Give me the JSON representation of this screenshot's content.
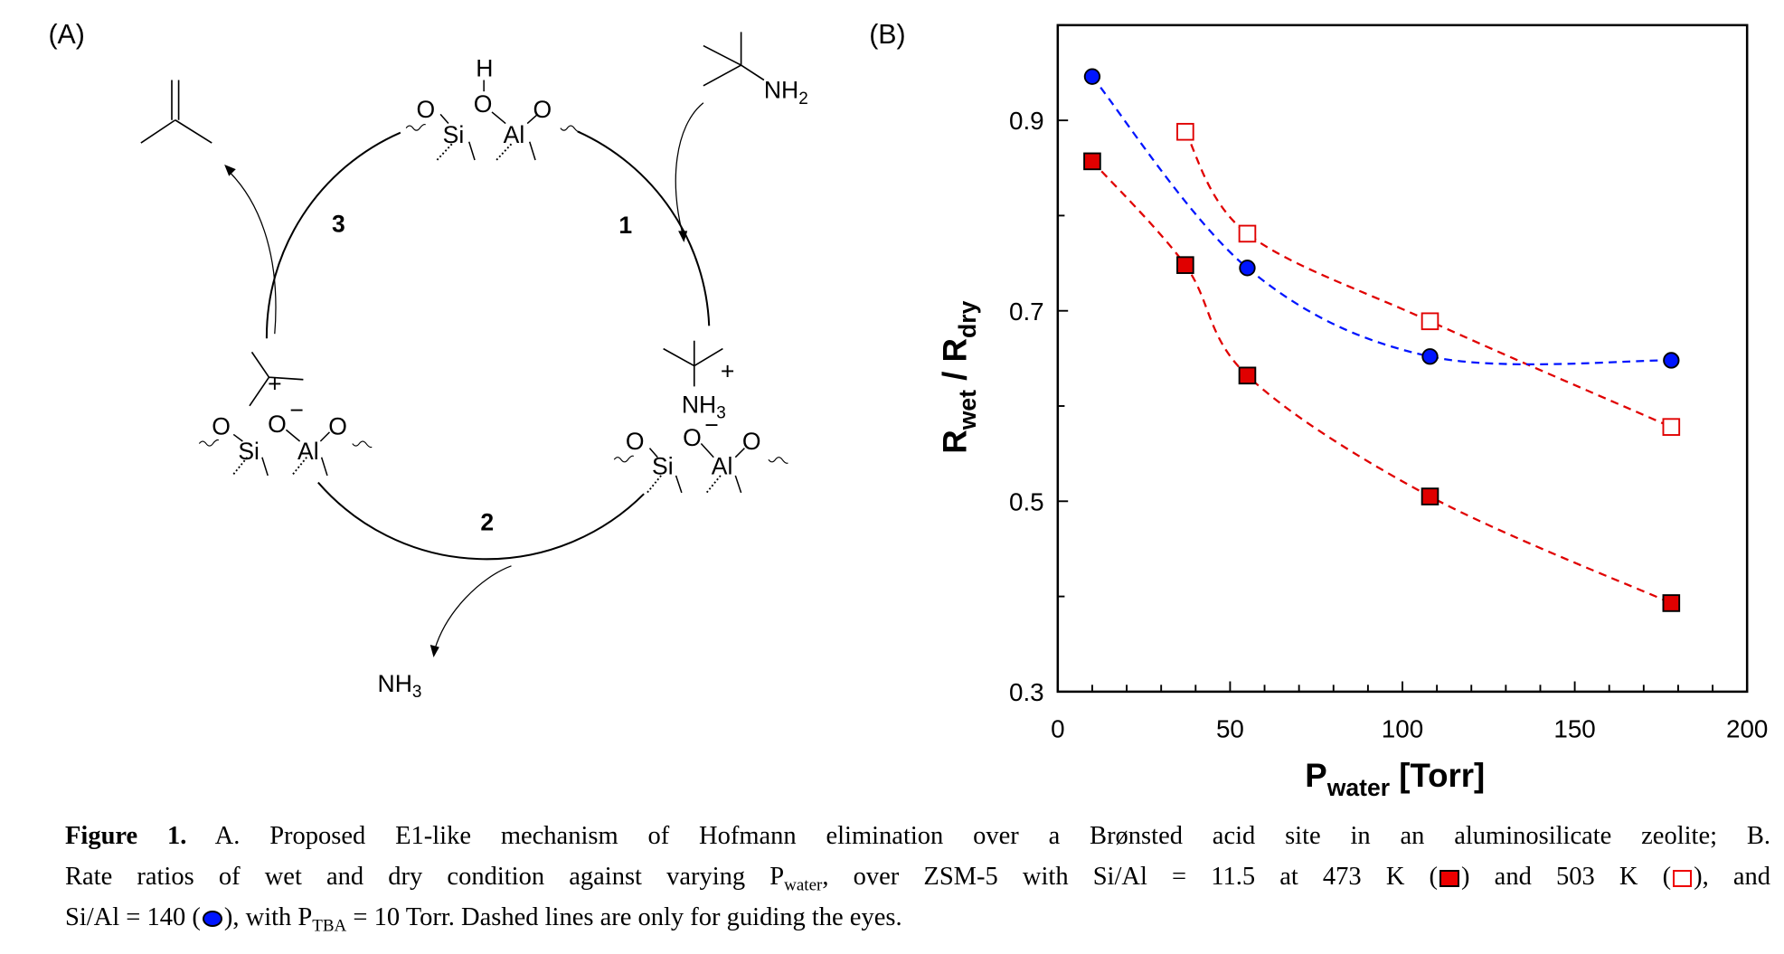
{
  "panels": {
    "a_label": "(A)",
    "b_label": "(B)"
  },
  "diagram": {
    "step_labels": [
      "1",
      "2",
      "3"
    ],
    "top_site": {
      "H": "H",
      "O_bridge": "O",
      "O_left": "O",
      "O_right": "O",
      "Si": "Si",
      "Al": "Al"
    },
    "reactant": {
      "amine_N": "NH",
      "amine_sub": "2"
    },
    "right_site": {
      "ammonium": "NH",
      "ammonium_sub": "3",
      "charge": "+",
      "O_bridge": "O",
      "anion_charge": "−",
      "O_left": "O",
      "O_right": "O",
      "Si": "Si",
      "Al": "Al"
    },
    "left_site": {
      "carbocation_charge": "+",
      "O_bridge": "O",
      "anion_charge": "−",
      "O_left": "O",
      "O_right": "O",
      "Si": "Si",
      "Al": "Al"
    },
    "product_ammonia": {
      "text": "NH",
      "sub": "3"
    }
  },
  "chart_data": {
    "type": "scatter",
    "xlabel": {
      "main": "P",
      "sub": "water",
      "rest": " [Torr]"
    },
    "ylabel": {
      "main1": "R",
      "sub1": "wet",
      "mid": " / R",
      "sub2": "dry"
    },
    "xlim": [
      0,
      200
    ],
    "ylim": [
      0.3,
      1.0
    ],
    "xticks": [
      0,
      50,
      100,
      150,
      200
    ],
    "yticks": [
      0.3,
      0.5,
      0.7,
      0.9
    ],
    "grid": false,
    "series": [
      {
        "marker": "filled-square",
        "color": "#e00000",
        "x": [
          10,
          37,
          55,
          108,
          178
        ],
        "y": [
          0.857,
          0.748,
          0.632,
          0.505,
          0.393
        ]
      },
      {
        "marker": "open-square",
        "color": "#e00000",
        "x": [
          37,
          55,
          108,
          178
        ],
        "y": [
          0.888,
          0.781,
          0.689,
          0.578
        ]
      },
      {
        "marker": "filled-circle",
        "color": "#0015ff",
        "x": [
          10,
          55,
          108,
          178
        ],
        "y": [
          0.946,
          0.745,
          0.652,
          0.648
        ]
      }
    ],
    "guide_lines": "dashed"
  },
  "caption": {
    "fig_label": "Figure 1.",
    "line1": " A. Proposed E1-like mechanism of Hofmann elimination over a Brønsted acid site in an aluminosilicate zeolite; B.",
    "line2a": "Rate ratios of wet and dry condition against varying P",
    "line2sub": "water",
    "line2b": ", over ZSM-5 with Si/Al = 11.5 at 473 K (",
    "line2c": ") and 503 K (",
    "line2d": "), and",
    "line3a": "Si/Al = 140 (",
    "line3b": "), with P",
    "line3sub": "TBA",
    "line3c": " = 10 Torr. Dashed lines are only for guiding the eyes."
  }
}
